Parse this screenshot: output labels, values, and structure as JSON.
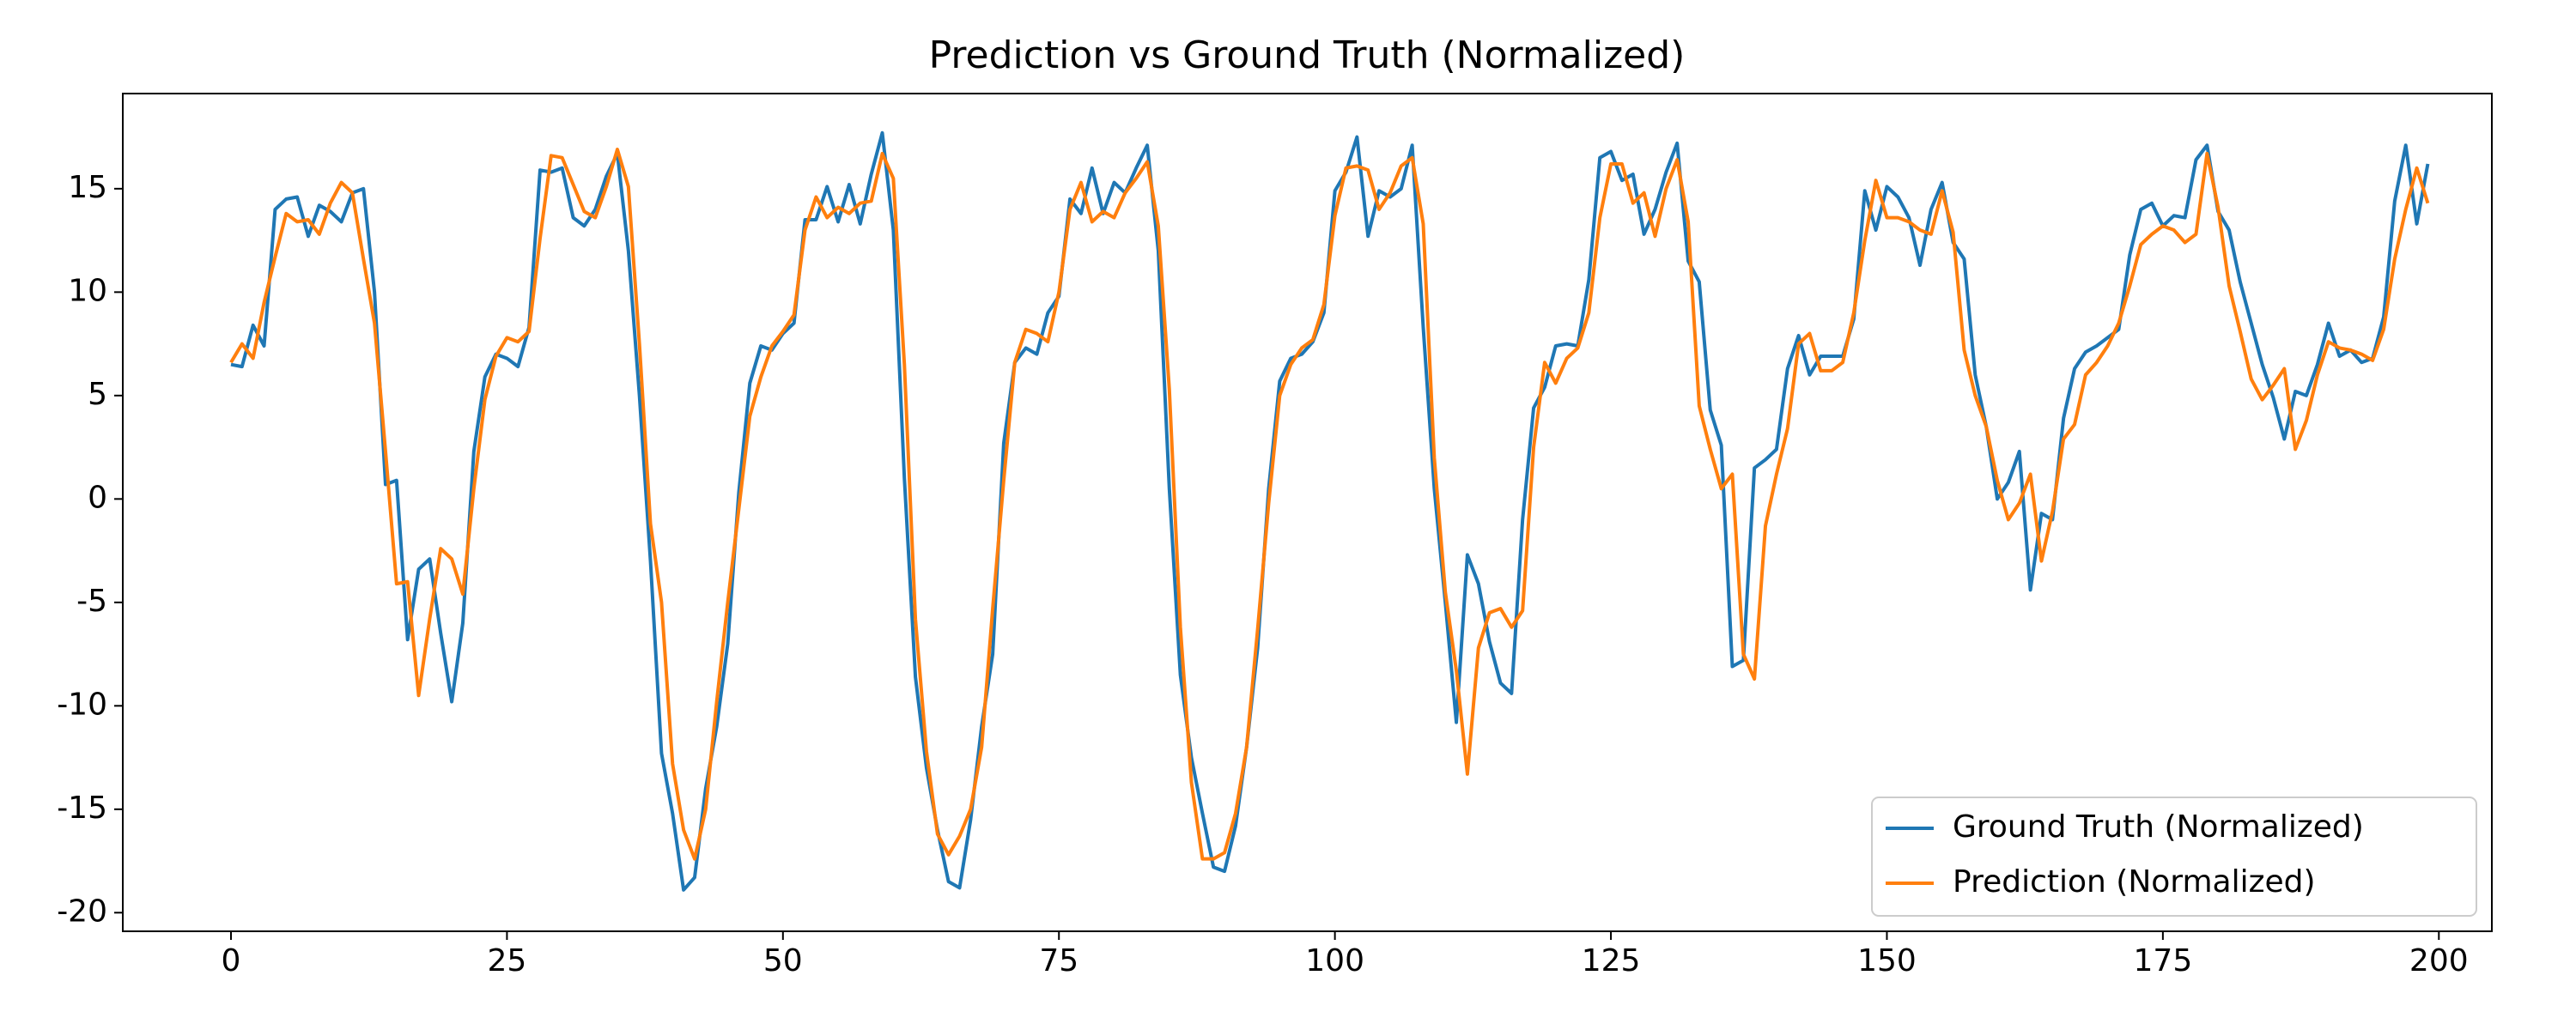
{
  "chart_data": {
    "type": "line",
    "title": "Prediction vs Ground Truth (Normalized)",
    "x": [
      0,
      1,
      2,
      3,
      4,
      5,
      6,
      7,
      8,
      9,
      10,
      11,
      12,
      13,
      14,
      15,
      16,
      17,
      18,
      19,
      20,
      21,
      22,
      23,
      24,
      25,
      26,
      27,
      28,
      29,
      30,
      31,
      32,
      33,
      34,
      35,
      36,
      37,
      38,
      39,
      40,
      41,
      42,
      43,
      44,
      45,
      46,
      47,
      48,
      49,
      50,
      51,
      52,
      53,
      54,
      55,
      56,
      57,
      58,
      59,
      60,
      61,
      62,
      63,
      64,
      65,
      66,
      67,
      68,
      69,
      70,
      71,
      72,
      73,
      74,
      75,
      76,
      77,
      78,
      79,
      80,
      81,
      82,
      83,
      84,
      85,
      86,
      87,
      88,
      89,
      90,
      91,
      92,
      93,
      94,
      95,
      96,
      97,
      98,
      99,
      100,
      101,
      102,
      103,
      104,
      105,
      106,
      107,
      108,
      109,
      110,
      111,
      112,
      113,
      114,
      115,
      116,
      117,
      118,
      119,
      120,
      121,
      122,
      123,
      124,
      125,
      126,
      127,
      128,
      129,
      130,
      131,
      132,
      133,
      134,
      135,
      136,
      137,
      138,
      139,
      140,
      141,
      142,
      143,
      144,
      145,
      146,
      147,
      148,
      149,
      150,
      151,
      152,
      153,
      154,
      155,
      156,
      157,
      158,
      159,
      160,
      161,
      162,
      163,
      164,
      165,
      166,
      167,
      168,
      169,
      170,
      171,
      172,
      173,
      174,
      175,
      176,
      177,
      178,
      179,
      180,
      181,
      182,
      183,
      184,
      185,
      186,
      187,
      188,
      189,
      190,
      191,
      192,
      193,
      194,
      195,
      196,
      197,
      198,
      199
    ],
    "series": [
      {
        "name": "Ground Truth (Normalized)",
        "color": "#1f77b4",
        "values": [
          6.5,
          6.4,
          8.4,
          7.4,
          14,
          14.5,
          14.6,
          12.7,
          14.2,
          13.9,
          13.4,
          14.8,
          15,
          10,
          0.7,
          0.9,
          -6.8,
          -3.4,
          -2.9,
          -6.5,
          -9.8,
          -6,
          2.3,
          5.9,
          7,
          6.8,
          6.4,
          8.3,
          15.9,
          15.8,
          16,
          13.6,
          13.2,
          14,
          15.6,
          16.7,
          12,
          5,
          -3,
          -12.3,
          -15.2,
          -18.9,
          -18.3,
          -14,
          -11,
          -7,
          0.3,
          5.6,
          7.4,
          7.2,
          8,
          8.5,
          13.5,
          13.5,
          15.1,
          13.4,
          15.2,
          13.3,
          15.7,
          17.7,
          13,
          1,
          -8.6,
          -13,
          -16,
          -18.5,
          -18.8,
          -15.5,
          -11,
          -7.5,
          2.7,
          6.6,
          7.3,
          7,
          9,
          9.8,
          14.5,
          13.8,
          16,
          13.8,
          15.3,
          14.8,
          16,
          17.1,
          12,
          0.5,
          -8.5,
          -12.5,
          -15.2,
          -17.8,
          -18,
          -15.8,
          -12,
          -7.2,
          0.5,
          5.7,
          6.8,
          7,
          7.6,
          9,
          14.9,
          15.8,
          17.5,
          12.7,
          14.9,
          14.6,
          15,
          17.1,
          8.3,
          0.5,
          -5,
          -10.8,
          -2.7,
          -4.1,
          -6.9,
          -8.9,
          -9.4,
          -1,
          4.4,
          5.4,
          7.4,
          7.5,
          7.4,
          10.6,
          16.5,
          16.8,
          15.4,
          15.7,
          12.8,
          14,
          15.8,
          17.2,
          11.5,
          10.5,
          4.3,
          2.6,
          -8.1,
          -7.8,
          1.5,
          1.9,
          2.4,
          6.3,
          7.9,
          6,
          6.9,
          6.9,
          6.9,
          8.7,
          14.9,
          13,
          15.1,
          14.6,
          13.6,
          11.3,
          14,
          15.3,
          12.4,
          11.6,
          6,
          3.5,
          0,
          0.8,
          2.3,
          -4.4,
          -0.7,
          -1,
          3.9,
          6.3,
          7.1,
          7.4,
          7.8,
          8.2,
          11.8,
          14,
          14.3,
          13.2,
          13.7,
          13.6,
          16.4,
          17.1,
          13.9,
          13,
          10.5,
          8.5,
          6.5,
          4.9,
          2.9,
          5.2,
          5,
          6.5,
          8.5,
          6.9,
          7.2,
          6.6,
          6.8,
          8.8,
          14.4,
          17.1,
          13.3,
          16.2
        ]
      },
      {
        "name": "Prediction (Normalized)",
        "color": "#ff7f0e",
        "values": [
          6.6,
          7.5,
          6.8,
          9.5,
          11.7,
          13.8,
          13.4,
          13.5,
          12.8,
          14.3,
          15.3,
          14.8,
          11.6,
          8.5,
          2.3,
          -4.1,
          -4,
          -9.5,
          -5.8,
          -2.4,
          -2.9,
          -4.6,
          0.5,
          4.8,
          6.9,
          7.8,
          7.6,
          8.1,
          12.6,
          16.6,
          16.5,
          15.2,
          13.9,
          13.6,
          15.1,
          16.9,
          15.1,
          7.5,
          -1.2,
          -5,
          -12.8,
          -16,
          -17.4,
          -15,
          -9.8,
          -5,
          -0.5,
          4,
          5.9,
          7.4,
          8.1,
          8.9,
          13,
          14.6,
          13.6,
          14.1,
          13.8,
          14.3,
          14.4,
          16.7,
          15.5,
          6.5,
          -5.8,
          -12.2,
          -16.2,
          -17.2,
          -16.3,
          -15,
          -12,
          -5.3,
          0.9,
          6.6,
          8.2,
          8,
          7.6,
          10,
          14,
          15.3,
          13.4,
          13.9,
          13.6,
          14.8,
          15.5,
          16.3,
          13.2,
          5.3,
          -6.2,
          -13.7,
          -17.4,
          -17.4,
          -17.1,
          -15.2,
          -12,
          -6.3,
          -0.2,
          5,
          6.5,
          7.3,
          7.7,
          9.4,
          13.7,
          16,
          16.1,
          15.9,
          14,
          14.8,
          16.1,
          16.5,
          13.3,
          2,
          -4.5,
          -8.3,
          -13.3,
          -7.2,
          -5.5,
          -5.3,
          -6.2,
          -5.4,
          2.5,
          6.6,
          5.6,
          6.8,
          7.3,
          9,
          13.6,
          16.2,
          16.2,
          14.3,
          14.8,
          12.7,
          15,
          16.4,
          13.4,
          4.5,
          2.4,
          0.5,
          1.2,
          -7.5,
          -8.7,
          -1.3,
          1.2,
          3.4,
          7.5,
          8,
          6.2,
          6.2,
          6.6,
          9,
          12.5,
          15.4,
          13.6,
          13.6,
          13.4,
          13,
          12.8,
          14.9,
          12.9,
          7.2,
          5,
          3.5,
          0.9,
          -1,
          -0.2,
          1.2,
          -3,
          -0.6,
          2.9,
          3.6,
          6,
          6.6,
          7.4,
          8.5,
          10.3,
          12.3,
          12.8,
          13.2,
          13,
          12.4,
          12.8,
          16.7,
          14.1,
          10.3,
          8.1,
          5.8,
          4.8,
          5.5,
          6.3,
          2.4,
          3.8,
          6,
          7.6,
          7.3,
          7.2,
          7,
          6.7,
          8.2,
          11.6,
          14,
          16,
          14.3
        ]
      }
    ],
    "xlim": [
      -9.8,
      204.8
    ],
    "ylim": [
      -20.9,
      19.6
    ],
    "xticks": [
      0,
      25,
      50,
      75,
      100,
      125,
      150,
      175,
      200
    ],
    "yticks": [
      -20,
      -15,
      -10,
      -5,
      0,
      5,
      10,
      15
    ],
    "grid": false,
    "legend": "lower right"
  }
}
